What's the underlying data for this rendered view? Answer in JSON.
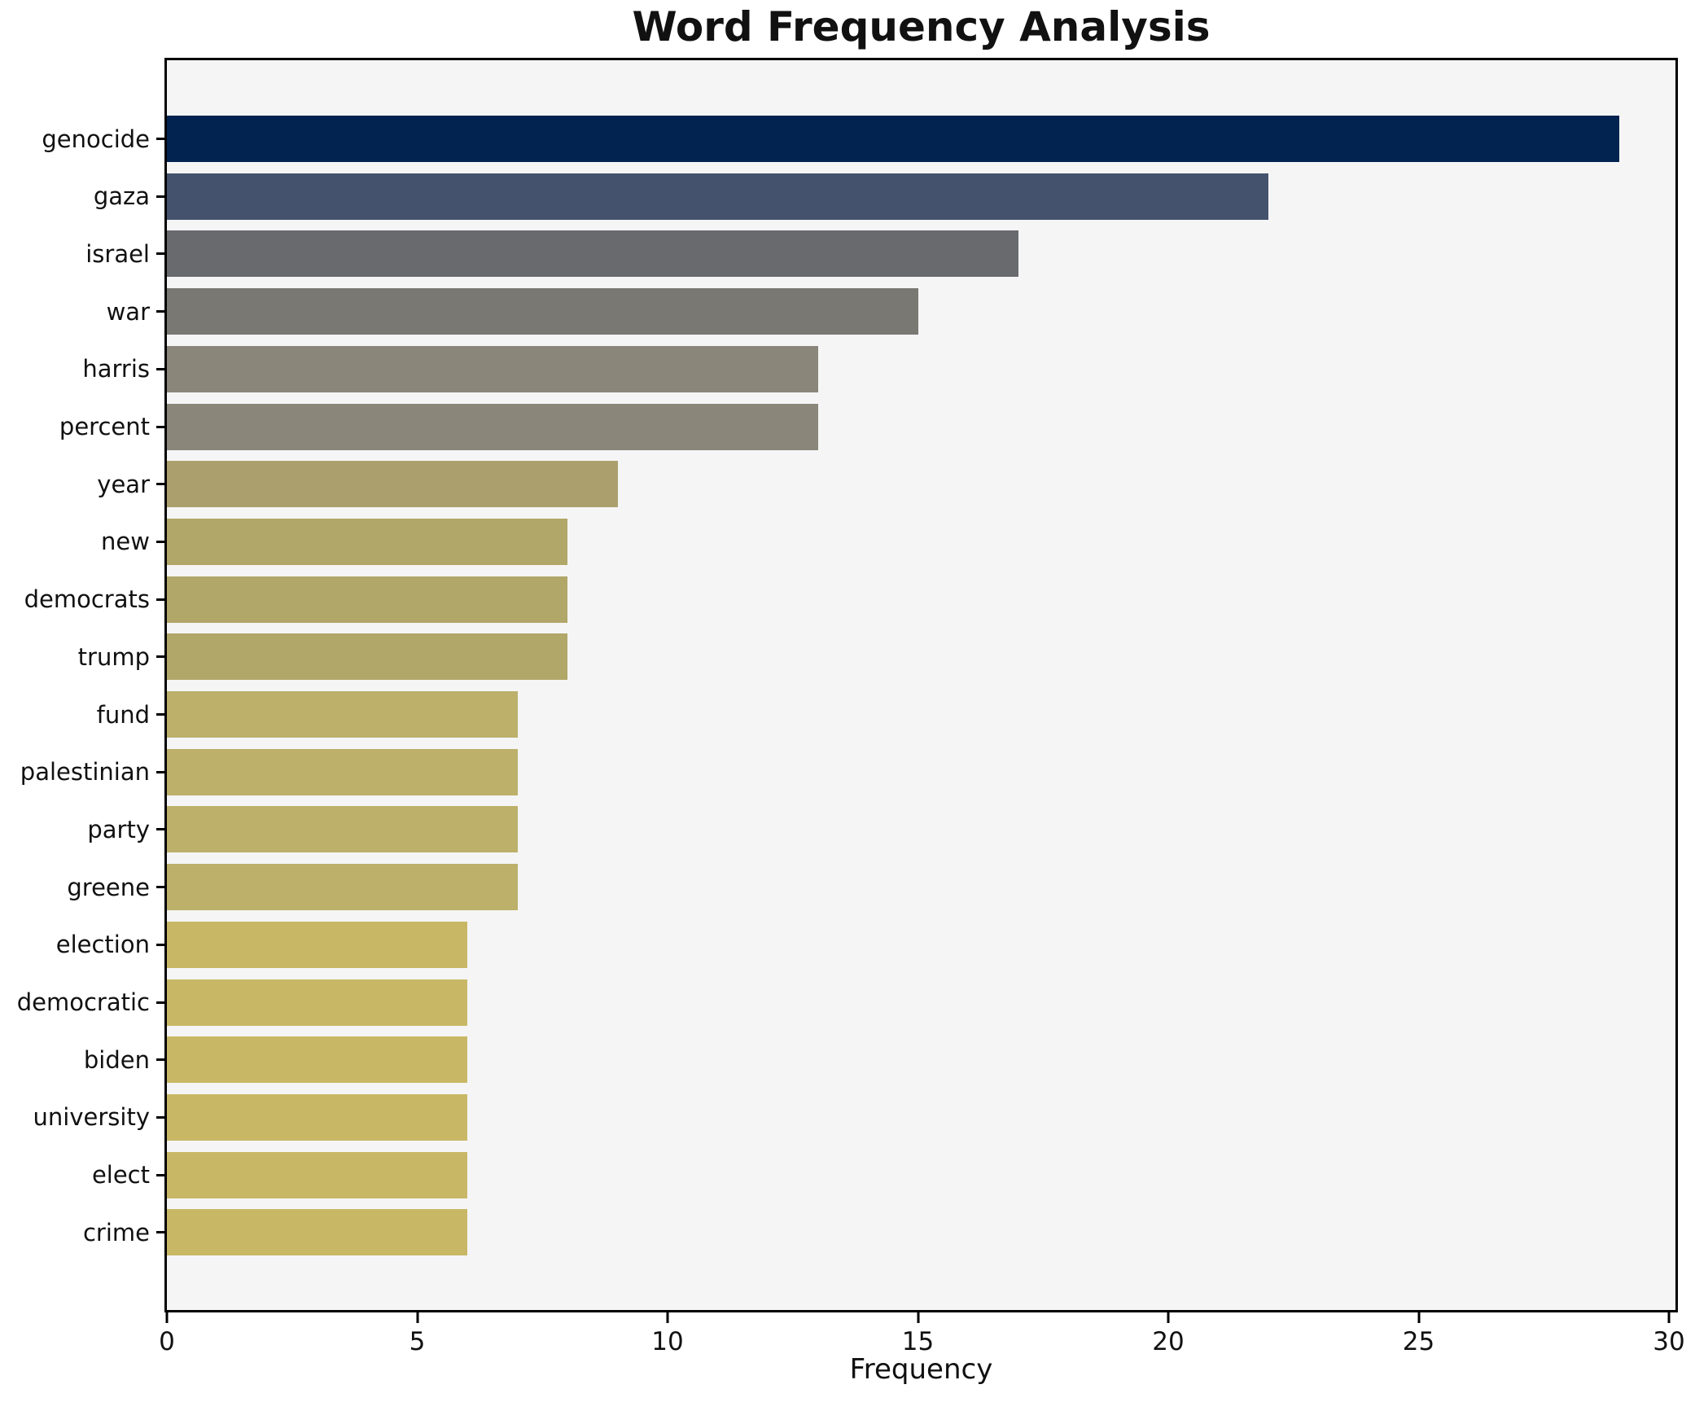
{
  "title": "Word Frequency Analysis",
  "chart_data": {
    "type": "bar",
    "orientation": "horizontal",
    "title": "Word Frequency Analysis",
    "xlabel": "Frequency",
    "ylabel": "",
    "xlim": [
      0,
      30
    ],
    "xticks": [
      0,
      5,
      10,
      15,
      20,
      25,
      30
    ],
    "grid": false,
    "legend": false,
    "plot_background": "#f5f5f6",
    "spine_color": "#000000",
    "categories": [
      "genocide",
      "gaza",
      "israel",
      "war",
      "harris",
      "percent",
      "year",
      "new",
      "democrats",
      "trump",
      "fund",
      "palestinian",
      "party",
      "greene",
      "election",
      "democratic",
      "biden",
      "university",
      "elect",
      "crime"
    ],
    "values": [
      29,
      22,
      17,
      15,
      13,
      13,
      9,
      8,
      8,
      8,
      7,
      7,
      7,
      7,
      6,
      6,
      6,
      6,
      6,
      6
    ],
    "bar_colors": [
      "#022350",
      "#45526e",
      "#686a6e",
      "#797872",
      "#8a877a",
      "#8a877a",
      "#aba06d",
      "#b1a768",
      "#b1a768",
      "#b1a768",
      "#bcb06a",
      "#bcb06a",
      "#bcb06a",
      "#bcb06a",
      "#c8b866",
      "#c8b866",
      "#c8b866",
      "#c8b866",
      "#c8b866",
      "#c8b866"
    ]
  }
}
